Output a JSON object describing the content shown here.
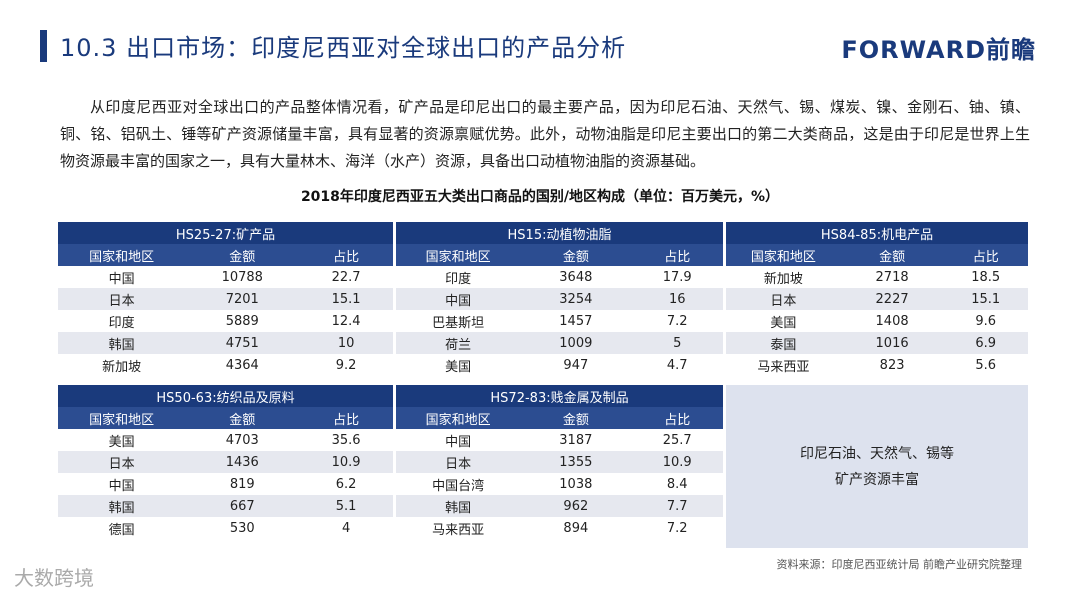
{
  "header": {
    "title": "10.3 出口市场：印度尼西亚对全球出口的产品分析",
    "logo": "FORWARD前瞻"
  },
  "intro": "从印度尼西亚对全球出口的产品整体情况看，矿产品是印尼出口的最主要产品，因为印尼石油、天然气、锡、煤炭、镍、金刚石、铀、镇、铜、铭、铝矾土、锤等矿产资源储量丰富，具有显著的资源禀赋优势。此外，动物油脂是印尼主要出口的第二大类商品，这是由于印尼是世界上生物资源最丰富的国家之一，具有大量林木、海洋（水产）资源，具备出口动植物油脂的资源基础。",
  "table_title": "2018年印度尼西亚五大类出口商品的国别/地区构成（单位：百万美元，%）",
  "tables": [
    {
      "title": "HS25-27:矿产品",
      "columns": [
        "国家和地区",
        "金额",
        "占比"
      ],
      "rows": [
        [
          "中国",
          10788,
          22.7
        ],
        [
          "日本",
          7201,
          15.1
        ],
        [
          "印度",
          5889,
          12.4
        ],
        [
          "韩国",
          4751,
          10
        ],
        [
          "新加坡",
          4364,
          9.2
        ]
      ]
    },
    {
      "title": "HS15:动植物油脂",
      "columns": [
        "国家和地区",
        "金额",
        "占比"
      ],
      "rows": [
        [
          "印度",
          3648,
          17.9
        ],
        [
          "中国",
          3254,
          16
        ],
        [
          "巴基斯坦",
          1457,
          7.2
        ],
        [
          "荷兰",
          1009,
          5
        ],
        [
          "美国",
          947,
          4.7
        ]
      ]
    },
    {
      "title": "HS84-85:机电产品",
      "columns": [
        "国家和地区",
        "金额",
        "占比"
      ],
      "rows": [
        [
          "新加坡",
          2718,
          18.5
        ],
        [
          "日本",
          2227,
          15.1
        ],
        [
          "美国",
          1408,
          9.6
        ],
        [
          "泰国",
          1016,
          6.9
        ],
        [
          "马来西亚",
          823,
          5.6
        ]
      ]
    },
    {
      "title": "HS50-63:纺织品及原料",
      "columns": [
        "国家和地区",
        "金额",
        "占比"
      ],
      "rows": [
        [
          "美国",
          4703,
          35.6
        ],
        [
          "日本",
          1436,
          10.9
        ],
        [
          "中国",
          819,
          6.2
        ],
        [
          "韩国",
          667,
          5.1
        ],
        [
          "德国",
          530,
          4
        ]
      ]
    },
    {
      "title": "HS72-83:贱金属及制品",
      "columns": [
        "国家和地区",
        "金额",
        "占比"
      ],
      "rows": [
        [
          "中国",
          3187,
          25.7
        ],
        [
          "日本",
          1355,
          10.9
        ],
        [
          "中国台湾",
          1038,
          8.4
        ],
        [
          "韩国",
          962,
          7.7
        ],
        [
          "马来西亚",
          894,
          7.2
        ]
      ]
    }
  ],
  "note": {
    "lines": [
      "印尼石油、天然气、锡等",
      "矿产资源丰富"
    ]
  },
  "source": "资料来源：印度尼西亚统计局  前瞻产业研究院整理",
  "watermark": "大数跨境"
}
